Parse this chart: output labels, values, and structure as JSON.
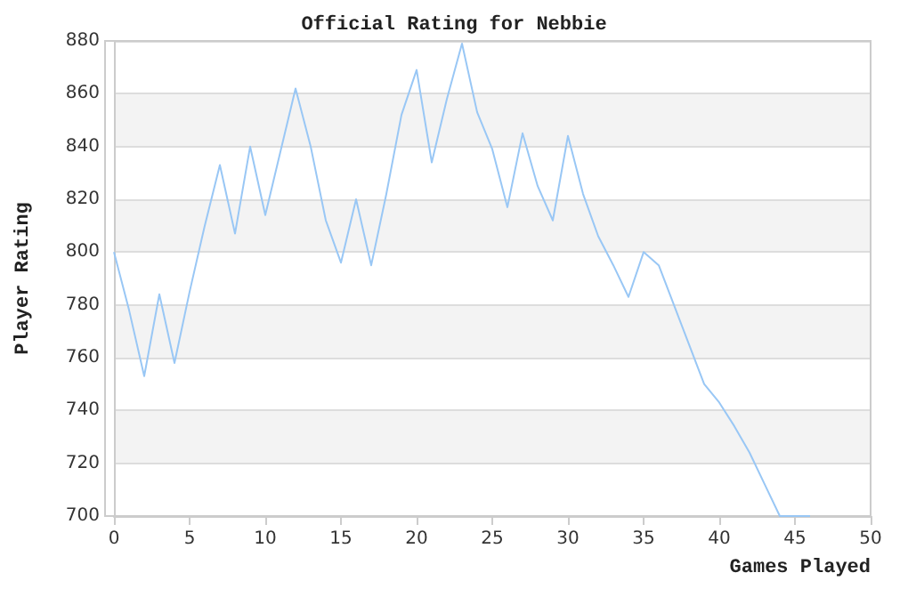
{
  "chart_data": {
    "type": "line",
    "title": "Official Rating for Nebbie",
    "xlabel": "Games Played",
    "ylabel": "Player Rating",
    "x": [
      0,
      1,
      2,
      3,
      4,
      5,
      6,
      7,
      8,
      9,
      10,
      11,
      12,
      13,
      14,
      15,
      16,
      17,
      18,
      19,
      20,
      21,
      22,
      23,
      24,
      25,
      26,
      27,
      28,
      29,
      30,
      31,
      32,
      33,
      34,
      35,
      36,
      37,
      38,
      39,
      40,
      41,
      42,
      43,
      44,
      45,
      46
    ],
    "series": [
      {
        "color": "#99c7f5",
        "values": [
          800,
          778,
          753,
          784,
          758,
          785,
          810,
          833,
          807,
          840,
          814,
          838,
          862,
          840,
          812,
          796,
          820,
          795,
          822,
          852,
          869,
          834,
          858,
          879,
          853,
          839,
          817,
          845,
          825,
          812,
          844,
          822,
          806,
          795,
          783,
          800,
          795,
          780,
          765,
          750,
          743,
          734,
          724,
          712,
          700,
          700,
          700
        ]
      }
    ],
    "xlim": [
      0,
      50
    ],
    "xticks": [
      0,
      5,
      10,
      15,
      20,
      25,
      30,
      35,
      40,
      45,
      50
    ],
    "ylim": [
      700,
      880
    ],
    "yticks": [
      700,
      720,
      740,
      760,
      780,
      800,
      820,
      840,
      860,
      880
    ],
    "grid": "y",
    "marker": "none",
    "line_style": "solid"
  }
}
